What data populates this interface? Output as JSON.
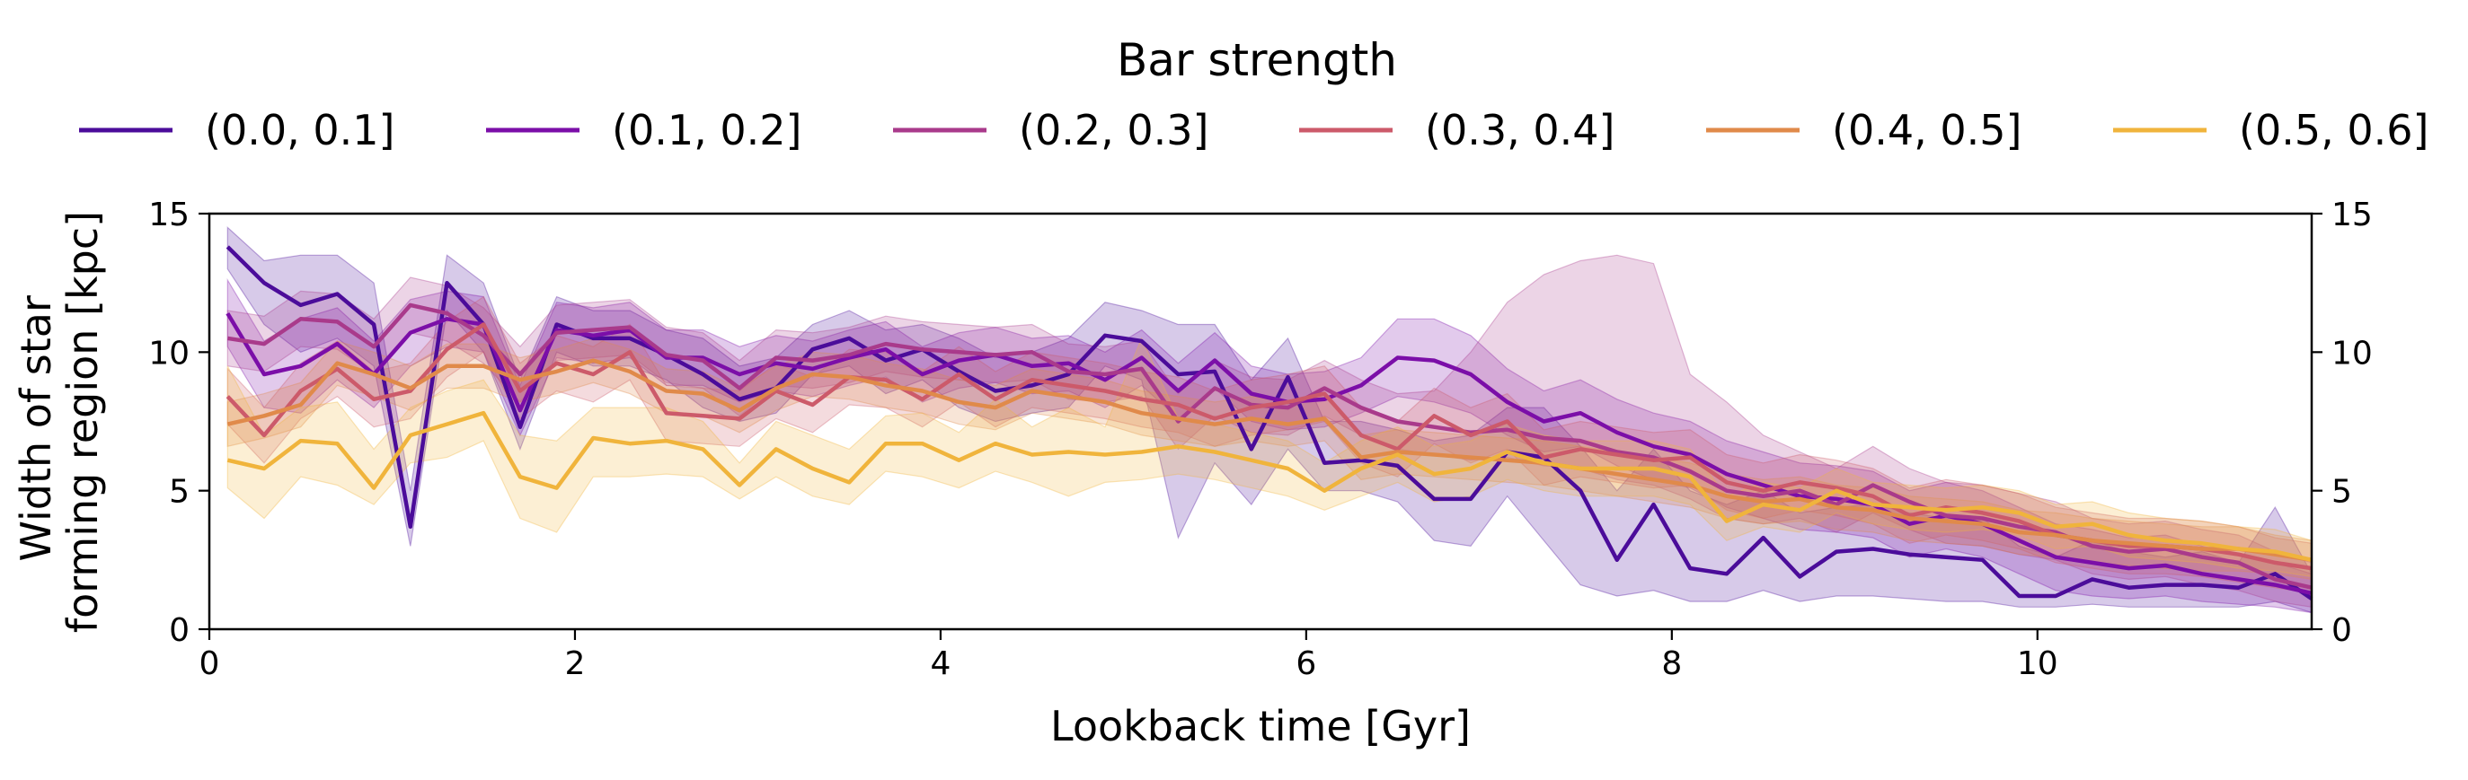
{
  "chart_data": {
    "type": "line",
    "title": "",
    "legend_title": "Bar strength",
    "legend_position": "top-center",
    "xlabel": "Lookback time [Gyr]",
    "ylabel_line1": "Width of star",
    "ylabel_line2": "forming region [kpc]",
    "xlim": [
      0,
      11.5
    ],
    "ylim": [
      0,
      15
    ],
    "xticks": [
      0,
      2,
      4,
      6,
      8,
      10
    ],
    "yticks": [
      0,
      5,
      10,
      15
    ],
    "xtick_labels": [
      "0",
      "2",
      "4",
      "6",
      "8",
      "10"
    ],
    "ytick_labels": [
      "0",
      "5",
      "10",
      "15"
    ],
    "grid": false,
    "right_axis_ticks": true,
    "x": [
      0.1,
      0.3,
      0.5,
      0.7,
      0.9,
      1.1,
      1.3,
      1.5,
      1.7,
      1.9,
      2.1,
      2.3,
      2.5,
      2.7,
      2.9,
      3.1,
      3.3,
      3.5,
      3.7,
      3.9,
      4.1,
      4.3,
      4.5,
      4.7,
      4.9,
      5.1,
      5.3,
      5.5,
      5.7,
      5.9,
      6.1,
      6.3,
      6.5,
      6.7,
      6.9,
      7.1,
      7.3,
      7.5,
      7.7,
      7.9,
      8.1,
      8.3,
      8.5,
      8.7,
      8.9,
      9.1,
      9.3,
      9.5,
      9.7,
      9.9,
      10.1,
      10.3,
      10.5,
      10.7,
      10.9,
      11.1,
      11.3,
      11.5
    ],
    "series": [
      {
        "name": "(0.0, 0.1]",
        "color": "#4b0c9a",
        "values": [
          13.8,
          12.5,
          11.7,
          12.1,
          11.0,
          3.7,
          12.5,
          11.0,
          7.3,
          11.0,
          10.5,
          10.5,
          9.9,
          9.2,
          8.3,
          8.7,
          10.1,
          10.5,
          9.7,
          10.1,
          9.3,
          8.6,
          8.8,
          9.2,
          10.6,
          10.4,
          9.2,
          9.3,
          6.5,
          9.1,
          6.0,
          6.1,
          5.9,
          4.7,
          4.7,
          6.4,
          6.2,
          5.0,
          2.5,
          4.5,
          2.2,
          2.0,
          3.3,
          1.9,
          2.8,
          2.9,
          2.7,
          2.6,
          2.5,
          1.2,
          1.2,
          1.8,
          1.5,
          1.6,
          1.6,
          1.5,
          2.0,
          1.1
        ],
        "lower": [
          13.0,
          11.0,
          10.0,
          10.5,
          9.5,
          3.0,
          11.5,
          10.0,
          6.5,
          10.0,
          9.5,
          9.5,
          9.0,
          8.0,
          7.5,
          7.8,
          9.2,
          9.5,
          8.5,
          9.0,
          8.0,
          7.5,
          7.8,
          8.0,
          9.5,
          9.0,
          3.3,
          6.0,
          4.5,
          6.5,
          5.0,
          5.0,
          4.6,
          3.2,
          3.0,
          4.8,
          3.2,
          1.6,
          1.2,
          1.4,
          1.0,
          1.0,
          1.4,
          1.0,
          1.2,
          1.2,
          1.1,
          1.0,
          1.0,
          0.8,
          0.8,
          0.9,
          0.8,
          0.8,
          0.8,
          0.8,
          1.0,
          0.6
        ],
        "upper": [
          14.5,
          13.3,
          13.5,
          13.5,
          12.5,
          5.0,
          13.5,
          12.5,
          9.0,
          12.0,
          11.5,
          11.5,
          10.8,
          10.5,
          9.5,
          9.8,
          11.0,
          11.5,
          10.8,
          11.0,
          10.5,
          9.8,
          10.0,
          10.5,
          11.8,
          11.5,
          11.0,
          11.0,
          9.0,
          10.5,
          7.5,
          7.5,
          7.2,
          6.8,
          7.0,
          8.0,
          8.0,
          6.6,
          5.0,
          6.5,
          5.0,
          4.5,
          5.0,
          4.2,
          4.4,
          4.5,
          4.2,
          4.0,
          4.0,
          3.0,
          2.6,
          3.2,
          2.8,
          2.6,
          2.8,
          2.4,
          4.4,
          2.0
        ]
      },
      {
        "name": "(0.1, 0.2]",
        "color": "#7b0ea8",
        "values": [
          11.4,
          9.2,
          9.5,
          10.3,
          9.2,
          10.7,
          11.2,
          11.0,
          7.9,
          10.8,
          10.6,
          10.8,
          9.8,
          9.8,
          9.2,
          9.6,
          9.4,
          9.8,
          10.1,
          9.2,
          9.7,
          9.9,
          9.5,
          9.6,
          9.0,
          9.8,
          8.6,
          9.7,
          8.5,
          8.2,
          8.3,
          8.8,
          9.8,
          9.7,
          9.2,
          8.2,
          7.5,
          7.8,
          7.1,
          6.6,
          6.3,
          5.6,
          5.2,
          4.8,
          4.7,
          4.5,
          3.8,
          4.1,
          3.8,
          3.2,
          2.6,
          2.4,
          2.2,
          2.3,
          2.0,
          1.8,
          1.6,
          1.3
        ],
        "lower": [
          10.2,
          8.0,
          7.8,
          9.0,
          8.0,
          9.5,
          10.2,
          10.0,
          7.0,
          9.8,
          9.6,
          9.8,
          8.8,
          8.8,
          8.2,
          8.6,
          8.4,
          8.8,
          9.1,
          8.2,
          8.7,
          8.9,
          8.5,
          8.6,
          8.0,
          8.8,
          7.6,
          8.7,
          7.5,
          7.2,
          7.3,
          7.8,
          8.4,
          8.2,
          7.8,
          7.0,
          6.4,
          6.6,
          5.9,
          5.4,
          5.1,
          4.4,
          4.0,
          3.6,
          3.5,
          3.3,
          2.6,
          2.9,
          2.6,
          2.0,
          1.4,
          1.2,
          1.1,
          1.2,
          1.0,
          0.9,
          0.8,
          0.6
        ],
        "upper": [
          12.6,
          10.4,
          11.2,
          11.6,
          10.4,
          11.9,
          12.2,
          12.0,
          8.8,
          11.8,
          11.6,
          11.8,
          10.8,
          10.8,
          10.2,
          10.6,
          10.4,
          10.8,
          11.1,
          10.2,
          10.7,
          10.9,
          10.5,
          10.6,
          10.0,
          10.8,
          9.6,
          10.7,
          9.5,
          9.2,
          9.3,
          9.8,
          11.2,
          11.2,
          10.6,
          9.4,
          8.6,
          9.0,
          8.3,
          7.8,
          7.5,
          6.8,
          6.4,
          6.0,
          5.9,
          5.7,
          5.0,
          5.3,
          5.0,
          4.4,
          3.8,
          3.6,
          3.3,
          3.4,
          3.0,
          2.7,
          2.4,
          2.0
        ]
      },
      {
        "name": "(0.2, 0.3]",
        "color": "#a93a8b",
        "values": [
          10.5,
          10.3,
          11.2,
          11.1,
          10.2,
          11.7,
          11.4,
          10.6,
          9.2,
          10.7,
          10.8,
          10.9,
          9.9,
          9.7,
          8.7,
          9.8,
          9.7,
          9.9,
          10.3,
          10.1,
          10.0,
          9.9,
          10.0,
          9.3,
          9.2,
          9.4,
          7.5,
          8.7,
          8.1,
          8.0,
          8.7,
          8.0,
          7.5,
          7.3,
          7.1,
          7.2,
          6.9,
          6.8,
          6.4,
          6.2,
          5.7,
          5.0,
          4.8,
          5.0,
          4.5,
          5.2,
          4.6,
          4.1,
          4.0,
          3.7,
          3.5,
          3.0,
          2.8,
          2.9,
          2.6,
          2.4,
          1.8,
          1.5
        ],
        "lower": [
          9.5,
          9.3,
          10.2,
          10.1,
          9.2,
          10.7,
          10.4,
          9.6,
          8.2,
          9.7,
          9.8,
          9.9,
          8.9,
          8.7,
          7.7,
          8.8,
          8.7,
          8.9,
          9.3,
          9.1,
          9.0,
          8.9,
          9.0,
          8.3,
          8.2,
          8.4,
          6.5,
          7.7,
          7.1,
          7.0,
          7.7,
          7.0,
          6.5,
          6.3,
          6.1,
          6.2,
          5.9,
          5.8,
          5.4,
          5.2,
          4.7,
          4.0,
          3.8,
          4.0,
          3.5,
          4.2,
          3.6,
          3.1,
          3.0,
          2.7,
          2.5,
          2.0,
          1.8,
          1.9,
          1.6,
          1.4,
          1.0,
          0.8
        ],
        "upper": [
          11.5,
          11.3,
          12.2,
          12.1,
          11.2,
          12.7,
          12.4,
          11.6,
          10.2,
          11.7,
          11.8,
          11.9,
          10.9,
          10.7,
          9.7,
          10.8,
          10.7,
          10.9,
          11.3,
          11.1,
          11.0,
          10.9,
          11.0,
          10.3,
          10.2,
          10.4,
          8.5,
          9.7,
          9.1,
          9.0,
          9.7,
          9.0,
          8.5,
          8.6,
          10.0,
          11.8,
          12.8,
          13.3,
          13.5,
          13.2,
          9.2,
          8.2,
          7.0,
          6.4,
          5.8,
          6.6,
          5.8,
          5.3,
          5.2,
          4.9,
          4.6,
          4.0,
          3.8,
          3.9,
          3.6,
          3.4,
          2.8,
          2.4
        ]
      },
      {
        "name": "(0.3, 0.4]",
        "color": "#cc5a6a",
        "values": [
          8.4,
          7.0,
          8.6,
          9.4,
          8.3,
          8.6,
          10.1,
          11.0,
          8.6,
          9.6,
          9.2,
          10.0,
          7.8,
          7.7,
          7.6,
          8.6,
          8.1,
          9.1,
          9.0,
          8.3,
          9.2,
          8.3,
          9.0,
          8.8,
          8.6,
          8.3,
          8.1,
          7.6,
          8.0,
          8.2,
          8.5,
          7.0,
          6.5,
          7.7,
          7.0,
          7.5,
          6.2,
          6.5,
          6.3,
          6.1,
          6.2,
          5.3,
          5.0,
          5.3,
          5.1,
          4.8,
          4.1,
          4.4,
          4.2,
          3.9,
          3.4,
          3.2,
          3.0,
          3.0,
          2.9,
          2.7,
          2.4,
          2.2
        ],
        "lower": [
          7.4,
          6.0,
          7.6,
          8.4,
          7.3,
          7.6,
          9.1,
          10.0,
          7.6,
          8.6,
          8.2,
          9.0,
          6.8,
          6.7,
          6.6,
          7.6,
          7.1,
          8.1,
          8.0,
          7.3,
          8.2,
          7.3,
          8.0,
          7.8,
          7.6,
          7.3,
          7.1,
          6.6,
          7.0,
          7.2,
          7.5,
          6.0,
          5.5,
          6.7,
          6.0,
          6.5,
          5.2,
          5.5,
          5.3,
          5.1,
          5.2,
          4.3,
          4.0,
          4.3,
          4.1,
          3.8,
          3.1,
          3.4,
          3.2,
          2.9,
          2.4,
          2.2,
          2.0,
          2.0,
          1.9,
          1.7,
          1.5,
          1.3
        ],
        "upper": [
          9.4,
          8.0,
          9.6,
          10.4,
          9.3,
          9.6,
          11.1,
          12.0,
          9.6,
          10.6,
          10.2,
          11.0,
          8.8,
          8.7,
          8.6,
          9.6,
          9.1,
          10.1,
          10.0,
          9.3,
          10.2,
          9.3,
          10.0,
          9.8,
          9.6,
          9.3,
          9.1,
          8.6,
          9.0,
          9.2,
          9.5,
          8.0,
          7.5,
          8.7,
          8.0,
          8.5,
          7.2,
          7.5,
          7.3,
          7.1,
          7.2,
          6.3,
          6.0,
          6.3,
          6.1,
          5.8,
          5.1,
          5.4,
          5.2,
          4.9,
          4.4,
          4.2,
          4.0,
          4.0,
          3.9,
          3.7,
          3.3,
          3.1
        ]
      },
      {
        "name": "(0.4, 0.5]",
        "color": "#e08a4a",
        "values": [
          7.4,
          7.7,
          8.1,
          9.6,
          9.2,
          8.7,
          9.5,
          9.5,
          9.0,
          9.3,
          9.7,
          9.3,
          8.6,
          8.5,
          7.9,
          8.7,
          9.2,
          9.1,
          8.8,
          8.6,
          8.2,
          8.0,
          8.6,
          8.4,
          8.2,
          7.8,
          7.6,
          7.4,
          7.6,
          7.4,
          7.6,
          6.2,
          6.4,
          6.3,
          6.2,
          6.1,
          6.0,
          5.8,
          5.6,
          5.4,
          5.2,
          4.8,
          4.6,
          4.7,
          4.4,
          4.3,
          4.0,
          3.9,
          3.8,
          3.5,
          3.4,
          3.2,
          3.1,
          3.0,
          2.9,
          2.9,
          2.7,
          2.5
        ],
        "lower": [
          6.6,
          6.9,
          7.3,
          8.8,
          8.4,
          7.9,
          8.7,
          8.7,
          8.2,
          8.5,
          8.9,
          8.5,
          7.8,
          7.7,
          7.1,
          7.9,
          8.4,
          8.3,
          8.0,
          7.8,
          7.4,
          7.2,
          7.8,
          7.6,
          7.4,
          7.0,
          6.8,
          6.6,
          6.8,
          6.6,
          6.8,
          5.4,
          5.6,
          5.5,
          5.4,
          5.3,
          5.2,
          5.0,
          4.8,
          4.6,
          4.4,
          4.0,
          3.8,
          3.9,
          3.6,
          3.5,
          3.2,
          3.1,
          3.0,
          2.7,
          2.6,
          2.4,
          2.3,
          2.2,
          2.1,
          2.1,
          2.0,
          1.8
        ],
        "upper": [
          8.2,
          8.5,
          8.9,
          10.4,
          10.0,
          9.5,
          10.3,
          10.3,
          9.8,
          10.1,
          10.5,
          10.1,
          9.4,
          9.3,
          8.7,
          9.5,
          10.0,
          9.9,
          9.6,
          9.4,
          9.0,
          8.8,
          9.4,
          9.2,
          9.0,
          8.6,
          8.4,
          8.2,
          8.4,
          8.2,
          8.4,
          7.0,
          7.2,
          7.1,
          7.0,
          6.9,
          6.8,
          6.6,
          6.4,
          6.2,
          6.0,
          5.6,
          5.4,
          5.5,
          5.2,
          5.1,
          4.8,
          4.7,
          4.6,
          4.3,
          4.2,
          4.0,
          3.9,
          3.8,
          3.7,
          3.7,
          3.4,
          3.2
        ]
      },
      {
        "name": "(0.5, 0.6]",
        "color": "#f0b43c",
        "values": [
          6.1,
          5.8,
          6.8,
          6.7,
          5.1,
          7.0,
          7.4,
          7.8,
          5.5,
          5.1,
          6.9,
          6.7,
          6.8,
          6.5,
          5.2,
          6.5,
          5.8,
          5.3,
          6.7,
          6.7,
          6.1,
          6.7,
          6.3,
          6.4,
          6.3,
          6.4,
          6.6,
          6.4,
          6.1,
          5.8,
          5.0,
          5.8,
          6.3,
          5.6,
          5.8,
          6.4,
          6.0,
          5.8,
          5.8,
          5.8,
          5.5,
          3.9,
          4.5,
          4.3,
          5.0,
          4.5,
          4.4,
          4.3,
          4.4,
          4.2,
          3.7,
          3.8,
          3.4,
          3.2,
          3.1,
          2.9,
          2.8,
          2.5
        ],
        "lower": [
          5.1,
          4.0,
          5.5,
          5.2,
          4.5,
          6.0,
          6.2,
          6.8,
          4.0,
          3.5,
          5.5,
          5.5,
          5.6,
          5.5,
          4.7,
          5.5,
          4.8,
          4.5,
          5.7,
          5.5,
          5.1,
          5.7,
          5.3,
          4.8,
          5.3,
          5.4,
          5.6,
          5.4,
          5.1,
          4.8,
          4.3,
          4.8,
          5.3,
          4.6,
          4.8,
          5.4,
          5.0,
          4.8,
          4.8,
          4.8,
          4.5,
          3.2,
          3.7,
          3.5,
          4.2,
          3.8,
          3.6,
          3.5,
          3.6,
          3.4,
          2.9,
          3.0,
          2.6,
          2.5,
          2.4,
          2.2,
          2.1,
          1.9
        ],
        "upper": [
          9.5,
          7.0,
          8.0,
          8.2,
          6.5,
          8.0,
          8.6,
          9.0,
          7.0,
          6.8,
          8.0,
          8.0,
          8.0,
          7.5,
          6.0,
          7.5,
          7.0,
          6.5,
          7.7,
          7.8,
          7.1,
          8.3,
          7.3,
          8.0,
          7.3,
          10.5,
          7.6,
          7.4,
          7.1,
          6.8,
          6.0,
          6.8,
          7.3,
          6.6,
          6.8,
          7.4,
          7.0,
          6.8,
          6.8,
          6.8,
          6.5,
          4.8,
          5.3,
          5.1,
          5.8,
          5.3,
          5.2,
          5.1,
          5.2,
          5.0,
          4.5,
          4.6,
          4.2,
          4.0,
          3.9,
          3.7,
          3.6,
          3.2
        ]
      }
    ]
  }
}
